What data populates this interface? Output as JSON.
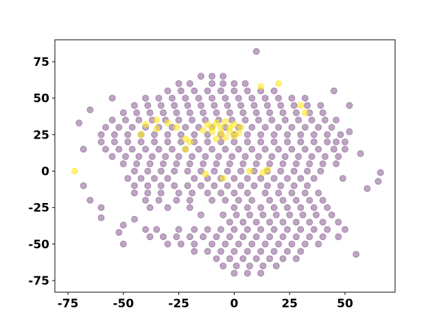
{
  "chart_data": {
    "type": "scatter",
    "xlim": [
      -80.9,
      72.6
    ],
    "ylim": [
      -83,
      90
    ],
    "xticks": [
      -75,
      -50,
      -25,
      0,
      25,
      50
    ],
    "yticks": [
      -75,
      -50,
      -25,
      0,
      25,
      50,
      75
    ],
    "grid": false,
    "series": [
      {
        "color": "#440154",
        "opacity": 0.35,
        "x": [
          -15,
          -10,
          -5,
          -25,
          -20,
          -10,
          -5,
          0,
          5,
          -30,
          -24,
          -18,
          -12,
          -6,
          0,
          6,
          12,
          18,
          -40,
          -34,
          -28,
          -22,
          -16,
          -10,
          -4,
          2,
          8,
          14,
          20,
          26,
          32,
          -45,
          -39,
          -33,
          -27,
          -21,
          -15,
          -9,
          -3,
          3,
          9,
          15,
          21,
          27,
          33,
          39,
          -50,
          -44,
          -38,
          -32,
          -26,
          -20,
          -14,
          -8,
          -2,
          4,
          10,
          16,
          22,
          28,
          34,
          40,
          -55,
          -49,
          -43,
          -37,
          -31,
          -25,
          -19,
          -13,
          -7,
          -1,
          5,
          11,
          17,
          23,
          29,
          35,
          41,
          46,
          -58,
          -52,
          -46,
          -40,
          -34,
          -28,
          -22,
          -16,
          -10,
          -4,
          2,
          8,
          14,
          20,
          26,
          32,
          38,
          44,
          -60,
          -54,
          -48,
          -42,
          -36,
          -30,
          -24,
          -18,
          -12,
          -6,
          0,
          6,
          12,
          18,
          24,
          30,
          36,
          42,
          48,
          -60,
          -54,
          -48,
          -42,
          -36,
          -30,
          -24,
          -18,
          -12,
          -6,
          0,
          6,
          12,
          18,
          24,
          30,
          36,
          42,
          46,
          -58,
          -52,
          -46,
          -40,
          -34,
          -28,
          -22,
          -16,
          -10,
          -4,
          2,
          8,
          14,
          20,
          26,
          32,
          38,
          45,
          50,
          -55,
          -49,
          -43,
          -37,
          -31,
          -25,
          -19,
          -13,
          -7,
          -1,
          5,
          11,
          17,
          23,
          29,
          35,
          41,
          47,
          -50,
          -44,
          -38,
          -32,
          -26,
          -20,
          -14,
          -8,
          -2,
          4,
          10,
          16,
          22,
          28,
          34,
          40,
          46,
          -45,
          -39,
          -33,
          -27,
          -21,
          -15,
          -9,
          -3,
          3,
          9,
          15,
          21,
          27,
          33,
          39,
          -48,
          -42,
          -36,
          -30,
          -18,
          -12,
          -6,
          0,
          6,
          12,
          18,
          24,
          30,
          36,
          -45,
          -39,
          -33,
          -27,
          -21,
          -15,
          -9,
          -3,
          3,
          9,
          15,
          21,
          27,
          33,
          -45,
          -39,
          -33,
          -25,
          -19,
          -12,
          -6,
          0,
          6,
          14,
          20,
          26,
          32,
          38,
          -40,
          -34,
          -26,
          -20,
          -10,
          -4,
          2,
          8,
          16,
          22,
          28,
          34,
          40,
          -38,
          -30,
          -20,
          0,
          6,
          12,
          18,
          24,
          30,
          36,
          42,
          -15,
          -5,
          1,
          7,
          13,
          19,
          25,
          31,
          37,
          44,
          -2,
          4,
          10,
          16,
          22,
          28,
          34,
          40,
          47,
          -40,
          -35,
          -25,
          -18,
          -12,
          -6,
          0,
          6,
          12,
          18,
          24,
          30,
          36,
          42,
          50,
          -38,
          -32,
          -26,
          -20,
          -14,
          -8,
          -2,
          4,
          10,
          16,
          22,
          28,
          34,
          40,
          47,
          -30,
          -24,
          -18,
          -10,
          -4,
          2,
          8,
          14,
          20,
          26,
          32,
          38,
          -18,
          -12,
          -6,
          0,
          6,
          12,
          18,
          24,
          30,
          -8,
          -2,
          4,
          10,
          16,
          22,
          28,
          -5,
          1,
          7,
          13,
          19,
          0,
          6,
          12,
          -65,
          -55,
          -70,
          -68,
          -68,
          -65,
          -60,
          -60,
          -50,
          -52,
          -50,
          -45,
          10,
          45,
          52,
          52,
          50,
          57,
          60,
          65,
          66,
          55,
          49
        ],
        "y": [
          65,
          65,
          65,
          60,
          60,
          60,
          60,
          60,
          60,
          55,
          55,
          55,
          55,
          55,
          55,
          55,
          55,
          55,
          50,
          50,
          50,
          50,
          50,
          50,
          50,
          50,
          50,
          50,
          50,
          50,
          50,
          45,
          45,
          45,
          45,
          45,
          45,
          45,
          45,
          45,
          45,
          45,
          45,
          45,
          45,
          45,
          40,
          40,
          40,
          40,
          40,
          40,
          40,
          40,
          40,
          40,
          40,
          40,
          40,
          40,
          40,
          40,
          35,
          35,
          35,
          35,
          35,
          35,
          35,
          35,
          35,
          35,
          35,
          35,
          35,
          35,
          35,
          35,
          35,
          35,
          30,
          30,
          30,
          30,
          30,
          30,
          30,
          30,
          30,
          30,
          30,
          30,
          30,
          30,
          30,
          30,
          30,
          30,
          25,
          25,
          25,
          25,
          25,
          25,
          25,
          25,
          25,
          25,
          25,
          25,
          25,
          25,
          25,
          25,
          25,
          25,
          25,
          20,
          20,
          20,
          20,
          20,
          20,
          20,
          20,
          20,
          20,
          20,
          20,
          20,
          20,
          20,
          20,
          20,
          20,
          20,
          15,
          15,
          15,
          15,
          15,
          15,
          15,
          15,
          15,
          15,
          15,
          15,
          15,
          15,
          15,
          15,
          15,
          15,
          15,
          10,
          10,
          10,
          10,
          10,
          10,
          10,
          10,
          10,
          10,
          10,
          10,
          10,
          10,
          10,
          10,
          10,
          10,
          5,
          5,
          5,
          5,
          5,
          5,
          5,
          5,
          5,
          5,
          5,
          5,
          5,
          5,
          5,
          5,
          5,
          0,
          0,
          0,
          0,
          0,
          0,
          0,
          0,
          0,
          0,
          0,
          0,
          0,
          0,
          0,
          -5,
          -5,
          -5,
          -5,
          -5,
          -5,
          -5,
          -5,
          -5,
          -5,
          -5,
          -5,
          -5,
          -5,
          -10,
          -10,
          -10,
          -10,
          -10,
          -10,
          -10,
          -10,
          -10,
          -10,
          -10,
          -10,
          -10,
          -10,
          -15,
          -15,
          -15,
          -15,
          -15,
          -15,
          -15,
          -15,
          -15,
          -15,
          -15,
          -15,
          -15,
          -15,
          -20,
          -20,
          -20,
          -20,
          -20,
          -20,
          -20,
          -20,
          -20,
          -20,
          -20,
          -20,
          -20,
          -25,
          -25,
          -25,
          -25,
          -25,
          -25,
          -25,
          -25,
          -25,
          -25,
          -25,
          -30,
          -30,
          -30,
          -30,
          -30,
          -30,
          -30,
          -30,
          -30,
          -30,
          -35,
          -35,
          -35,
          -35,
          -35,
          -35,
          -35,
          -35,
          -35,
          -40,
          -40,
          -40,
          -40,
          -40,
          -40,
          -40,
          -40,
          -40,
          -40,
          -40,
          -40,
          -40,
          -40,
          -40,
          -45,
          -45,
          -45,
          -45,
          -45,
          -45,
          -45,
          -45,
          -45,
          -45,
          -45,
          -45,
          -45,
          -45,
          -45,
          -50,
          -50,
          -50,
          -50,
          -50,
          -50,
          -50,
          -50,
          -50,
          -50,
          -50,
          -50,
          -55,
          -55,
          -55,
          -55,
          -55,
          -55,
          -55,
          -55,
          -55,
          -60,
          -60,
          -60,
          -60,
          -60,
          -60,
          -60,
          -65,
          -65,
          -65,
          -65,
          -65,
          -70,
          -70,
          -70,
          42,
          50,
          33,
          15,
          -10,
          -20,
          -25,
          -32,
          -37,
          -42,
          -50,
          -33,
          82,
          55,
          45,
          27,
          20,
          12,
          -12,
          -7,
          -1,
          -57,
          -5
        ]
      },
      {
        "color": "#fde725",
        "opacity": 0.6,
        "x": [
          -12,
          -8,
          -4,
          0,
          3,
          -10,
          -6,
          -2,
          2,
          -8,
          -4,
          0,
          -30,
          -35,
          -40,
          -22,
          -20,
          -72,
          -5,
          7,
          15,
          13,
          -13,
          -22,
          30,
          32,
          -35,
          -42,
          -26,
          12,
          20,
          -10,
          -6,
          -2,
          -14
        ],
        "y": [
          32,
          33,
          34,
          32,
          30,
          27,
          26,
          27,
          26,
          22,
          23,
          24,
          33,
          35,
          32,
          22,
          20,
          0,
          -5,
          0,
          1,
          -1,
          -2,
          15,
          45,
          40,
          29,
          25,
          30,
          58,
          60,
          30,
          30,
          30,
          28
        ]
      }
    ]
  }
}
